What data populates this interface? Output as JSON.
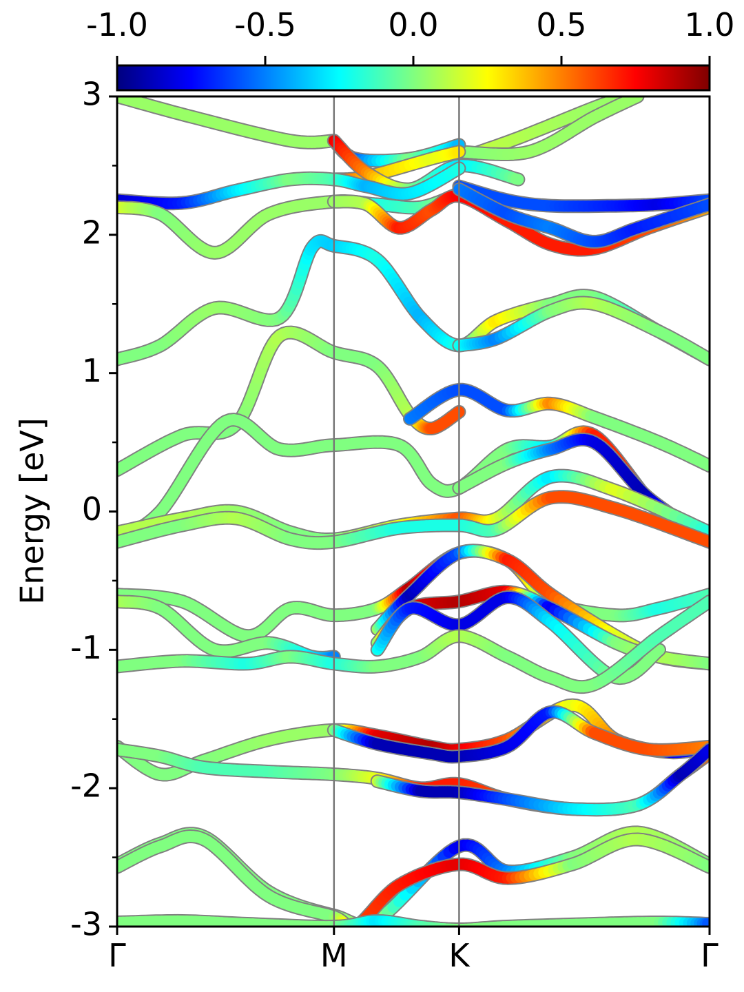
{
  "chart_data": {
    "type": "line",
    "subtype": "band-structure-fatband",
    "ylabel": "Energy [eV]",
    "ylim": [
      -3,
      3
    ],
    "yticks": [
      -3,
      -2,
      -1,
      0,
      1,
      2,
      3
    ],
    "yticks_minor": [
      -2.5,
      -1.5,
      -0.5,
      0.5,
      1.5,
      2.5
    ],
    "xticks": [
      {
        "label": "Γ",
        "k": 0.0
      },
      {
        "label": "M",
        "k": 1.0
      },
      {
        "label": "K",
        "k": 1.577
      },
      {
        "label": "Γ",
        "k": 2.732
      }
    ],
    "xlim": [
      0.0,
      2.732
    ],
    "colorbar": {
      "colormap": "jet",
      "range": [
        -1.0,
        1.0
      ],
      "ticks": [
        "-1.0",
        "-0.5",
        "0.0",
        "0.5",
        "1.0"
      ],
      "position": "top"
    },
    "colors": {
      "neutral": "#80ff80",
      "negative": "#0000ff",
      "positive": "#ff0000",
      "edge": "#808080"
    },
    "series": [
      {
        "k": [
          0,
          0.35,
          0.8,
          1.0
        ],
        "e": [
          3.0,
          2.85,
          2.68,
          2.68
        ],
        "c": [
          0.05,
          0.05,
          0.05,
          0.05
        ]
      },
      {
        "k": [
          1.577,
          1.85,
          2.2,
          2.35
        ],
        "e": [
          2.55,
          2.7,
          2.92,
          3.0
        ],
        "c": [
          0.15,
          0.1,
          0.05,
          0.05
        ]
      },
      {
        "k": [
          1.577,
          1.9,
          2.2,
          2.4
        ],
        "e": [
          2.6,
          2.6,
          2.85,
          3.0
        ],
        "c": [
          0.0,
          0.05,
          0.05,
          0.05
        ]
      },
      {
        "k": [
          1.0,
          1.1,
          1.35,
          1.577
        ],
        "e": [
          2.68,
          2.55,
          2.55,
          2.65
        ],
        "c": [
          -0.8,
          -0.6,
          0.0,
          -0.4
        ]
      },
      {
        "k": [
          1.0,
          1.15,
          1.45,
          1.577
        ],
        "e": [
          2.4,
          2.42,
          2.55,
          2.6
        ],
        "c": [
          0.7,
          0.4,
          0.2,
          0.3
        ]
      },
      {
        "k": [
          1.0,
          1.15,
          1.35,
          1.577,
          1.85
        ],
        "e": [
          2.68,
          2.45,
          2.33,
          2.5,
          2.4
        ],
        "c": [
          0.8,
          0.5,
          0.0,
          -0.3,
          0.0
        ]
      },
      {
        "k": [
          0,
          0.3,
          0.55,
          0.8,
          1.0,
          1.15,
          1.35,
          1.577
        ],
        "e": [
          2.25,
          2.23,
          2.32,
          2.4,
          2.4,
          2.35,
          2.3,
          2.48
        ],
        "c": [
          -0.85,
          -0.7,
          -0.3,
          0.0,
          -0.1,
          -0.4,
          -0.3,
          -0.2
        ]
      },
      {
        "k": [
          1.577,
          1.8,
          2.0,
          2.3,
          2.5,
          2.732
        ],
        "e": [
          2.35,
          2.25,
          2.21,
          2.21,
          2.22,
          2.25
        ],
        "c": [
          -0.6,
          -0.6,
          -0.6,
          -0.7,
          -0.8,
          -0.6
        ]
      },
      {
        "k": [
          0,
          0.2,
          0.45,
          0.7,
          1.0,
          1.2,
          1.4,
          1.577
        ],
        "e": [
          2.2,
          2.15,
          1.87,
          2.15,
          2.24,
          2.22,
          2.2,
          2.3
        ],
        "c": [
          0.2,
          0.0,
          0.05,
          0.05,
          0.05,
          -0.2,
          -0.1,
          0.1
        ]
      },
      {
        "k": [
          1.0,
          1.15,
          1.3,
          1.45,
          1.577,
          1.8,
          2.0,
          2.2,
          2.45,
          2.732
        ],
        "e": [
          2.24,
          2.22,
          2.05,
          2.18,
          2.28,
          2.1,
          1.93,
          1.9,
          2.05,
          2.2
        ],
        "c": [
          0.05,
          0.1,
          0.7,
          0.6,
          0.75,
          0.7,
          0.7,
          0.7,
          0.6,
          0.4
        ]
      },
      {
        "k": [
          1.577,
          1.8,
          2.0,
          2.2,
          2.4,
          2.732
        ],
        "e": [
          2.33,
          2.15,
          2.05,
          1.95,
          2.05,
          2.22
        ],
        "c": [
          -0.5,
          -0.6,
          -0.5,
          -0.6,
          -0.7,
          -0.6
        ]
      },
      {
        "k": [
          0,
          0.2,
          0.45,
          0.75,
          0.9,
          1.0,
          1.2,
          1.4,
          1.577,
          1.75,
          2.0,
          2.2,
          2.5,
          2.732
        ],
        "e": [
          1.1,
          1.2,
          1.47,
          1.4,
          1.91,
          1.92,
          1.82,
          1.4,
          1.2,
          1.38,
          1.5,
          1.55,
          1.3,
          1.1
        ],
        "c": [
          0.0,
          0.0,
          0.05,
          0.0,
          -0.3,
          -0.35,
          -0.2,
          -0.4,
          -0.2,
          0.3,
          0.0,
          0.0,
          -0.2,
          0.0
        ]
      },
      {
        "k": [
          1.577,
          1.75,
          2.0,
          2.2,
          2.5,
          2.732
        ],
        "e": [
          1.2,
          1.25,
          1.45,
          1.5,
          1.3,
          1.1
        ],
        "c": [
          -0.2,
          -0.5,
          0.0,
          0.1,
          0.0,
          0.0
        ]
      },
      {
        "k": [
          0,
          0.3,
          0.55,
          0.75,
          1.0,
          1.2,
          1.35,
          1.45,
          1.577
        ],
        "e": [
          0.3,
          0.55,
          0.63,
          1.27,
          1.15,
          1.05,
          0.7,
          0.6,
          0.72
        ],
        "c": [
          0.0,
          0.0,
          0.0,
          0.1,
          0.0,
          0.0,
          0.1,
          0.6,
          0.6
        ]
      },
      {
        "k": [
          1.35,
          1.577,
          1.8,
          2.0,
          2.2,
          2.5,
          2.732
        ],
        "e": [
          0.67,
          0.88,
          0.73,
          0.78,
          0.68,
          0.5,
          0.33
        ],
        "c": [
          -0.5,
          -0.6,
          -0.6,
          0.5,
          0.0,
          0.0,
          0.0
        ]
      },
      {
        "k": [
          0,
          0.2,
          0.5,
          0.75,
          1.0,
          1.3,
          1.45,
          1.577,
          1.8,
          2.0,
          2.2,
          2.5,
          2.732
        ],
        "e": [
          -0.2,
          0.0,
          0.65,
          0.45,
          0.48,
          0.48,
          0.2,
          0.17,
          0.45,
          0.47,
          0.55,
          0.0,
          -0.2
        ],
        "c": [
          0.0,
          0.0,
          0.0,
          0.0,
          0.0,
          0.0,
          0.0,
          0.0,
          0.0,
          -0.3,
          0.7,
          0.6,
          0.7
        ]
      },
      {
        "k": [
          1.577,
          1.8,
          2.0,
          2.2,
          2.45,
          2.732
        ],
        "e": [
          0.17,
          0.35,
          0.45,
          0.5,
          0.1,
          -0.2
        ],
        "c": [
          0.0,
          0.0,
          -0.5,
          -0.8,
          -0.9,
          0.0
        ]
      },
      {
        "k": [
          0,
          0.3,
          0.55,
          0.8,
          1.0,
          1.3,
          1.577,
          1.75,
          2.0,
          2.3,
          2.732
        ],
        "e": [
          -0.15,
          -0.05,
          0.0,
          -0.15,
          -0.2,
          -0.1,
          -0.05,
          -0.05,
          0.25,
          0.15,
          -0.15
        ],
        "c": [
          0.1,
          0.1,
          0.05,
          0.0,
          0.0,
          0.2,
          0.6,
          0.2,
          -0.3,
          0.2,
          -0.2
        ]
      },
      {
        "k": [
          0,
          0.3,
          0.55,
          0.8,
          1.0,
          1.3,
          1.577,
          1.75,
          2.0,
          2.3,
          2.732
        ],
        "e": [
          -0.22,
          -0.1,
          -0.05,
          -0.2,
          -0.22,
          -0.12,
          -0.1,
          -0.13,
          0.1,
          0.02,
          -0.22
        ],
        "c": [
          0.0,
          0.0,
          0.1,
          0.0,
          0.0,
          -0.2,
          -0.2,
          -0.1,
          0.6,
          0.6,
          0.6
        ]
      },
      {
        "k": [
          0,
          0.3,
          0.6,
          0.8,
          1.0,
          1.2,
          1.35,
          1.577,
          1.8,
          2.0,
          2.3,
          2.5,
          2.732
        ],
        "e": [
          -0.6,
          -0.65,
          -0.9,
          -0.7,
          -0.75,
          -0.7,
          -0.55,
          -0.3,
          -0.35,
          -0.65,
          -0.75,
          -0.7,
          -0.6
        ],
        "c": [
          0.0,
          0.0,
          0.0,
          0.0,
          0.0,
          0.0,
          0.9,
          0.5,
          0.6,
          0.0,
          0.0,
          -0.2,
          -0.1
        ]
      },
      {
        "k": [
          1.2,
          1.35,
          1.577,
          1.8,
          2.0,
          2.3,
          2.5,
          2.732
        ],
        "e": [
          -0.85,
          -0.6,
          -0.3,
          -0.35,
          -0.6,
          -0.9,
          -1.05,
          -1.1
        ],
        "c": [
          0.1,
          -0.9,
          -0.6,
          0.7,
          0.6,
          0.2,
          0.1,
          0.1
        ]
      },
      {
        "k": [
          0,
          0.2,
          0.45,
          0.7,
          0.9,
          1.0
        ],
        "e": [
          -0.65,
          -0.7,
          -1.0,
          -0.95,
          -1.05,
          -1.05
        ],
        "c": [
          0.1,
          0.0,
          0.0,
          0.0,
          -0.3,
          -0.5
        ]
      },
      {
        "k": [
          1.2,
          1.35,
          1.577,
          1.8,
          2.0,
          2.3,
          2.5,
          2.732
        ],
        "e": [
          -0.95,
          -0.7,
          -0.65,
          -0.58,
          -0.7,
          -0.95,
          -1.05,
          -1.1
        ],
        "c": [
          0.0,
          0.8,
          0.9,
          0.8,
          -0.8,
          0.0,
          0.1,
          0.0
        ]
      },
      {
        "k": [
          1.2,
          1.35,
          1.577,
          1.8,
          2.0,
          2.3,
          2.5
        ],
        "e": [
          -1.0,
          -0.7,
          -0.82,
          -0.62,
          -0.8,
          -1.2,
          -1.0
        ],
        "c": [
          -0.2,
          -0.7,
          -0.8,
          -0.8,
          -0.3,
          0.0,
          0.0
        ]
      },
      {
        "k": [
          0,
          0.3,
          0.6,
          0.8,
          1.0,
          1.2,
          1.4,
          1.577,
          1.8,
          2.0,
          2.2,
          2.5,
          2.732
        ],
        "e": [
          -1.12,
          -1.08,
          -1.1,
          -1.05,
          -1.1,
          -1.12,
          -1.05,
          -0.9,
          -1.05,
          -1.2,
          -1.25,
          -0.9,
          -0.65
        ],
        "c": [
          0.0,
          0.0,
          -0.2,
          0.0,
          -0.2,
          0.0,
          0.0,
          0.1,
          0.0,
          0.0,
          0.0,
          -0.1,
          -0.1
        ]
      },
      {
        "k": [
          0,
          0.2,
          0.4,
          0.7,
          1.0,
          1.2,
          1.45,
          1.577,
          1.8,
          2.1,
          2.3,
          2.55,
          2.732
        ],
        "e": [
          -1.7,
          -1.9,
          -1.8,
          -1.65,
          -1.58,
          -1.62,
          -1.7,
          -1.72,
          -1.65,
          -1.4,
          -1.65,
          -1.74,
          -1.7
        ],
        "c": [
          0.0,
          0.0,
          0.0,
          0.05,
          0.05,
          0.8,
          0.9,
          0.8,
          0.6,
          0.2,
          0.5,
          -0.8,
          -0.6
        ]
      },
      {
        "k": [
          1.0,
          1.2,
          1.45,
          1.577,
          1.8,
          2.0,
          2.2,
          2.45,
          2.732
        ],
        "e": [
          -1.58,
          -1.68,
          -1.75,
          -1.77,
          -1.7,
          -1.45,
          -1.6,
          -1.72,
          -1.7
        ],
        "c": [
          0.05,
          -0.9,
          -0.9,
          -0.9,
          -0.8,
          -0.7,
          0.6,
          0.6,
          0.5
        ]
      },
      {
        "k": [
          0,
          0.2,
          0.4,
          0.7,
          1.0,
          1.2,
          1.4,
          1.577,
          1.8,
          2.1,
          2.4,
          2.6,
          2.732
        ],
        "e": [
          -1.72,
          -1.77,
          -1.85,
          -1.88,
          -1.9,
          -1.93,
          -2.0,
          -1.97,
          -2.08,
          -2.15,
          -2.12,
          -1.9,
          -1.75
        ],
        "c": [
          0.0,
          0.0,
          -0.1,
          -0.1,
          0.0,
          0.2,
          0.7,
          0.7,
          0.6,
          -0.2,
          0.1,
          0.7,
          0.5
        ]
      },
      {
        "k": [
          1.2,
          1.4,
          1.577,
          1.8,
          2.1,
          2.4,
          2.6,
          2.732
        ],
        "e": [
          -1.95,
          -2.02,
          -2.03,
          -2.08,
          -2.15,
          -2.12,
          -1.9,
          -1.72
        ],
        "c": [
          0.2,
          -0.9,
          -0.9,
          -0.6,
          -0.3,
          -0.1,
          -0.9,
          -0.8
        ]
      },
      {
        "k": [
          0,
          0.2,
          0.4,
          0.7,
          1.0,
          1.2,
          1.577,
          1.8,
          2.1,
          2.4,
          2.732
        ],
        "e": [
          -2.55,
          -2.4,
          -2.35,
          -2.75,
          -2.92,
          -2.95,
          -2.42,
          -2.6,
          -2.5,
          -2.32,
          -2.55
        ],
        "c": [
          0.0,
          0.0,
          0.0,
          0.0,
          0.0,
          0.1,
          -0.8,
          -0.5,
          0.0,
          0.1,
          0.0
        ]
      },
      {
        "k": [
          0,
          0.2,
          0.4,
          0.7,
          1.0,
          1.1,
          1.3,
          1.577,
          1.8,
          2.1,
          2.4,
          2.732
        ],
        "e": [
          -2.57,
          -2.42,
          -2.37,
          -2.78,
          -2.93,
          -3.0,
          -2.7,
          -2.55,
          -2.65,
          -2.55,
          -2.37,
          -2.57
        ],
        "c": [
          0.0,
          0.0,
          0.0,
          0.0,
          0.0,
          0.6,
          0.7,
          0.8,
          0.7,
          0.0,
          0.1,
          0.0
        ]
      },
      {
        "k": [
          0,
          0.3,
          0.6,
          1.0,
          1.2,
          1.4,
          1.577,
          1.8,
          2.2,
          2.5,
          2.732
        ],
        "e": [
          -2.97,
          -2.96,
          -2.98,
          -3.0,
          -2.96,
          -3.0,
          -3.02,
          -3.0,
          -2.98,
          -2.97,
          -2.98
        ],
        "c": [
          0.0,
          0.0,
          0.0,
          0.0,
          -0.3,
          -0.1,
          0.0,
          0.0,
          0.0,
          0.0,
          -0.6
        ]
      }
    ]
  }
}
